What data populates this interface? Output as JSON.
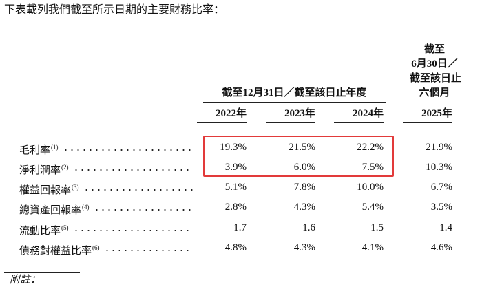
{
  "intro": "下表載列我們截至所示日期的主要財務比率：",
  "table": {
    "group_header": "截至12月31日／截至該日止年度",
    "period_header": [
      "截至",
      "6月30日／",
      "截至該日止",
      "六個月"
    ],
    "columns": [
      "2022年",
      "2023年",
      "2024年",
      "2025年"
    ],
    "rows": [
      {
        "label": "毛利率",
        "note": "(1)",
        "values": [
          "19.3%",
          "21.5%",
          "22.2%",
          "21.9%"
        ]
      },
      {
        "label": "淨利潤率",
        "note": "(2)",
        "values": [
          "3.9%",
          "6.0%",
          "7.5%",
          "10.3%"
        ]
      },
      {
        "label": "權益回報率",
        "note": "(3)",
        "values": [
          "5.1%",
          "7.8%",
          "10.0%",
          "6.7%"
        ]
      },
      {
        "label": "總資產回報率",
        "note": "(4)",
        "values": [
          "2.8%",
          "4.3%",
          "5.4%",
          "3.5%"
        ]
      },
      {
        "label": "流動比率",
        "note": "(5)",
        "values": [
          "1.7",
          "1.6",
          "1.5",
          "1.4"
        ]
      },
      {
        "label": "債務對權益比率",
        "note": "(6)",
        "values": [
          "4.8%",
          "4.3%",
          "4.1%",
          "4.6%"
        ]
      }
    ]
  },
  "footer": "附註："
}
